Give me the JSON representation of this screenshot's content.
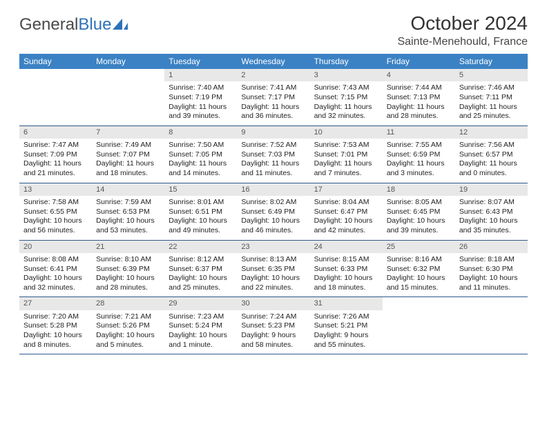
{
  "logo": {
    "text1": "General",
    "text2": "Blue"
  },
  "title": "October 2024",
  "location": "Sainte-Menehould, France",
  "weekdays": [
    "Sunday",
    "Monday",
    "Tuesday",
    "Wednesday",
    "Thursday",
    "Friday",
    "Saturday"
  ],
  "colors": {
    "header_bg": "#3b82c4",
    "daynum_bg": "#e8e8e8",
    "border": "#2d5b8a"
  },
  "weeks": [
    [
      {
        "empty": true
      },
      {
        "empty": true
      },
      {
        "num": "1",
        "sunrise": "Sunrise: 7:40 AM",
        "sunset": "Sunset: 7:19 PM",
        "daylight": "Daylight: 11 hours and 39 minutes."
      },
      {
        "num": "2",
        "sunrise": "Sunrise: 7:41 AM",
        "sunset": "Sunset: 7:17 PM",
        "daylight": "Daylight: 11 hours and 36 minutes."
      },
      {
        "num": "3",
        "sunrise": "Sunrise: 7:43 AM",
        "sunset": "Sunset: 7:15 PM",
        "daylight": "Daylight: 11 hours and 32 minutes."
      },
      {
        "num": "4",
        "sunrise": "Sunrise: 7:44 AM",
        "sunset": "Sunset: 7:13 PM",
        "daylight": "Daylight: 11 hours and 28 minutes."
      },
      {
        "num": "5",
        "sunrise": "Sunrise: 7:46 AM",
        "sunset": "Sunset: 7:11 PM",
        "daylight": "Daylight: 11 hours and 25 minutes."
      }
    ],
    [
      {
        "num": "6",
        "sunrise": "Sunrise: 7:47 AM",
        "sunset": "Sunset: 7:09 PM",
        "daylight": "Daylight: 11 hours and 21 minutes."
      },
      {
        "num": "7",
        "sunrise": "Sunrise: 7:49 AM",
        "sunset": "Sunset: 7:07 PM",
        "daylight": "Daylight: 11 hours and 18 minutes."
      },
      {
        "num": "8",
        "sunrise": "Sunrise: 7:50 AM",
        "sunset": "Sunset: 7:05 PM",
        "daylight": "Daylight: 11 hours and 14 minutes."
      },
      {
        "num": "9",
        "sunrise": "Sunrise: 7:52 AM",
        "sunset": "Sunset: 7:03 PM",
        "daylight": "Daylight: 11 hours and 11 minutes."
      },
      {
        "num": "10",
        "sunrise": "Sunrise: 7:53 AM",
        "sunset": "Sunset: 7:01 PM",
        "daylight": "Daylight: 11 hours and 7 minutes."
      },
      {
        "num": "11",
        "sunrise": "Sunrise: 7:55 AM",
        "sunset": "Sunset: 6:59 PM",
        "daylight": "Daylight: 11 hours and 3 minutes."
      },
      {
        "num": "12",
        "sunrise": "Sunrise: 7:56 AM",
        "sunset": "Sunset: 6:57 PM",
        "daylight": "Daylight: 11 hours and 0 minutes."
      }
    ],
    [
      {
        "num": "13",
        "sunrise": "Sunrise: 7:58 AM",
        "sunset": "Sunset: 6:55 PM",
        "daylight": "Daylight: 10 hours and 56 minutes."
      },
      {
        "num": "14",
        "sunrise": "Sunrise: 7:59 AM",
        "sunset": "Sunset: 6:53 PM",
        "daylight": "Daylight: 10 hours and 53 minutes."
      },
      {
        "num": "15",
        "sunrise": "Sunrise: 8:01 AM",
        "sunset": "Sunset: 6:51 PM",
        "daylight": "Daylight: 10 hours and 49 minutes."
      },
      {
        "num": "16",
        "sunrise": "Sunrise: 8:02 AM",
        "sunset": "Sunset: 6:49 PM",
        "daylight": "Daylight: 10 hours and 46 minutes."
      },
      {
        "num": "17",
        "sunrise": "Sunrise: 8:04 AM",
        "sunset": "Sunset: 6:47 PM",
        "daylight": "Daylight: 10 hours and 42 minutes."
      },
      {
        "num": "18",
        "sunrise": "Sunrise: 8:05 AM",
        "sunset": "Sunset: 6:45 PM",
        "daylight": "Daylight: 10 hours and 39 minutes."
      },
      {
        "num": "19",
        "sunrise": "Sunrise: 8:07 AM",
        "sunset": "Sunset: 6:43 PM",
        "daylight": "Daylight: 10 hours and 35 minutes."
      }
    ],
    [
      {
        "num": "20",
        "sunrise": "Sunrise: 8:08 AM",
        "sunset": "Sunset: 6:41 PM",
        "daylight": "Daylight: 10 hours and 32 minutes."
      },
      {
        "num": "21",
        "sunrise": "Sunrise: 8:10 AM",
        "sunset": "Sunset: 6:39 PM",
        "daylight": "Daylight: 10 hours and 28 minutes."
      },
      {
        "num": "22",
        "sunrise": "Sunrise: 8:12 AM",
        "sunset": "Sunset: 6:37 PM",
        "daylight": "Daylight: 10 hours and 25 minutes."
      },
      {
        "num": "23",
        "sunrise": "Sunrise: 8:13 AM",
        "sunset": "Sunset: 6:35 PM",
        "daylight": "Daylight: 10 hours and 22 minutes."
      },
      {
        "num": "24",
        "sunrise": "Sunrise: 8:15 AM",
        "sunset": "Sunset: 6:33 PM",
        "daylight": "Daylight: 10 hours and 18 minutes."
      },
      {
        "num": "25",
        "sunrise": "Sunrise: 8:16 AM",
        "sunset": "Sunset: 6:32 PM",
        "daylight": "Daylight: 10 hours and 15 minutes."
      },
      {
        "num": "26",
        "sunrise": "Sunrise: 8:18 AM",
        "sunset": "Sunset: 6:30 PM",
        "daylight": "Daylight: 10 hours and 11 minutes."
      }
    ],
    [
      {
        "num": "27",
        "sunrise": "Sunrise: 7:20 AM",
        "sunset": "Sunset: 5:28 PM",
        "daylight": "Daylight: 10 hours and 8 minutes."
      },
      {
        "num": "28",
        "sunrise": "Sunrise: 7:21 AM",
        "sunset": "Sunset: 5:26 PM",
        "daylight": "Daylight: 10 hours and 5 minutes."
      },
      {
        "num": "29",
        "sunrise": "Sunrise: 7:23 AM",
        "sunset": "Sunset: 5:24 PM",
        "daylight": "Daylight: 10 hours and 1 minute."
      },
      {
        "num": "30",
        "sunrise": "Sunrise: 7:24 AM",
        "sunset": "Sunset: 5:23 PM",
        "daylight": "Daylight: 9 hours and 58 minutes."
      },
      {
        "num": "31",
        "sunrise": "Sunrise: 7:26 AM",
        "sunset": "Sunset: 5:21 PM",
        "daylight": "Daylight: 9 hours and 55 minutes."
      },
      {
        "empty": true
      },
      {
        "empty": true
      }
    ]
  ]
}
